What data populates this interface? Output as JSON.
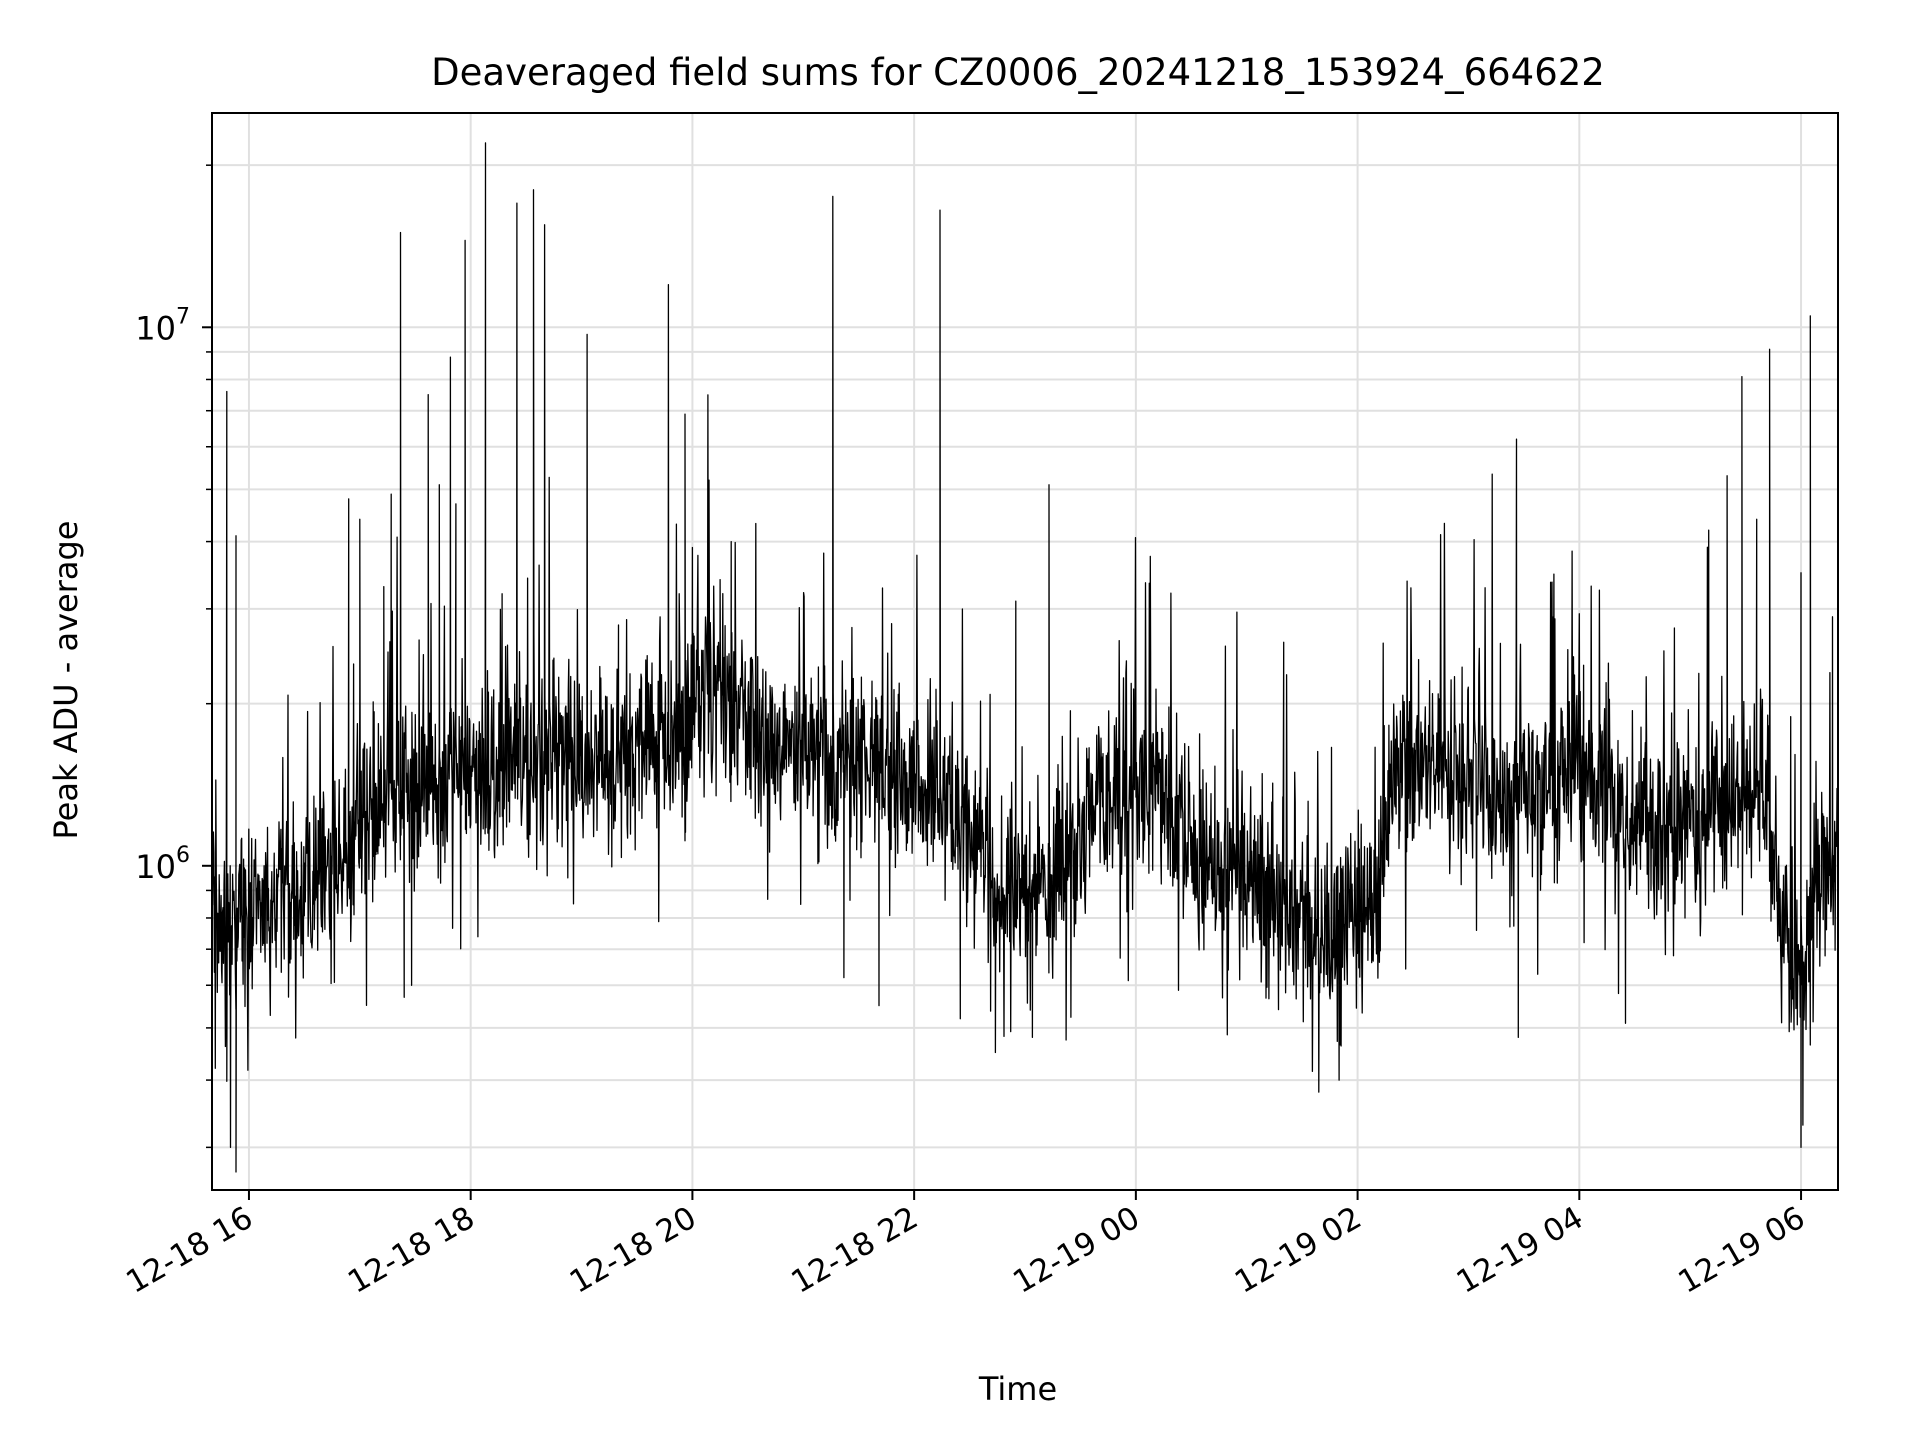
{
  "chart_data": {
    "type": "line",
    "title": "Deaveraged field sums for CZ0006_20241218_153924_664622",
    "xlabel": "Time",
    "ylabel": "Peak ADU - average",
    "y_scale": "log",
    "ylim": [
      250000,
      25000000
    ],
    "xlim": [
      "2024-12-18 15:40",
      "2024-12-19 06:20"
    ],
    "grid": true,
    "line_color": "#000000",
    "grid_color": "#e0e0e0",
    "x_ticks": [
      {
        "at": "2024-12-18 16:00",
        "label": "12-18 16"
      },
      {
        "at": "2024-12-18 18:00",
        "label": "12-18 18"
      },
      {
        "at": "2024-12-18 20:00",
        "label": "12-18 20"
      },
      {
        "at": "2024-12-18 22:00",
        "label": "12-18 22"
      },
      {
        "at": "2024-12-19 00:00",
        "label": "12-19 00"
      },
      {
        "at": "2024-12-19 02:00",
        "label": "12-19 02"
      },
      {
        "at": "2024-12-19 04:00",
        "label": "12-19 04"
      },
      {
        "at": "2024-12-19 06:00",
        "label": "12-19 06"
      }
    ],
    "y_ticks": [
      {
        "value": 1000000,
        "base": "10",
        "exp": "6"
      },
      {
        "value": 10000000,
        "base": "10",
        "exp": "7"
      }
    ],
    "series": [
      {
        "values": [
          [
            "2024-12-18 15:40",
            900000
          ],
          [
            "2024-12-18 15:50",
            780000
          ],
          [
            "2024-12-18 16:00",
            800000
          ],
          [
            "2024-12-18 16:20",
            850000
          ],
          [
            "2024-12-18 16:40",
            950000
          ],
          [
            "2024-12-18 17:00",
            1150000
          ],
          [
            "2024-12-18 17:20",
            1350000
          ],
          [
            "2024-12-18 17:40",
            1450000
          ],
          [
            "2024-12-18 18:00",
            1500000
          ],
          [
            "2024-12-18 18:20",
            1550000
          ],
          [
            "2024-12-18 18:40",
            1550000
          ],
          [
            "2024-12-18 19:00",
            1600000
          ],
          [
            "2024-12-18 19:20",
            1650000
          ],
          [
            "2024-12-18 19:40",
            1750000
          ],
          [
            "2024-12-18 20:00",
            1900000
          ],
          [
            "2024-12-18 20:10",
            2100000
          ],
          [
            "2024-12-18 20:30",
            1800000
          ],
          [
            "2024-12-18 21:00",
            1650000
          ],
          [
            "2024-12-18 21:30",
            1550000
          ],
          [
            "2024-12-18 22:00",
            1400000
          ],
          [
            "2024-12-18 22:20",
            1250000
          ],
          [
            "2024-12-18 22:40",
            950000
          ],
          [
            "2024-12-18 23:00",
            850000
          ],
          [
            "2024-12-18 23:20",
            1050000
          ],
          [
            "2024-12-18 23:40",
            1350000
          ],
          [
            "2024-12-19 00:00",
            1400000
          ],
          [
            "2024-12-19 00:20",
            1250000
          ],
          [
            "2024-12-19 00:40",
            1050000
          ],
          [
            "2024-12-19 01:00",
            950000
          ],
          [
            "2024-12-19 01:20",
            850000
          ],
          [
            "2024-12-19 01:40",
            720000
          ],
          [
            "2024-12-19 02:00",
            800000
          ],
          [
            "2024-12-19 02:10",
            900000
          ],
          [
            "2024-12-19 02:20",
            1500000
          ],
          [
            "2024-12-19 02:40",
            1600000
          ],
          [
            "2024-12-19 03:00",
            1550000
          ],
          [
            "2024-12-19 03:20",
            1350000
          ],
          [
            "2024-12-19 03:40",
            1350000
          ],
          [
            "2024-12-19 04:00",
            1550000
          ],
          [
            "2024-12-19 04:20",
            1300000
          ],
          [
            "2024-12-19 04:40",
            1150000
          ],
          [
            "2024-12-19 05:00",
            1200000
          ],
          [
            "2024-12-19 05:20",
            1250000
          ],
          [
            "2024-12-19 05:40",
            1500000
          ],
          [
            "2024-12-19 05:50",
            800000
          ],
          [
            "2024-12-19 06:00",
            550000
          ],
          [
            "2024-12-19 06:10",
            900000
          ],
          [
            "2024-12-19 06:20",
            1100000
          ]
        ],
        "spikes": [
          [
            "2024-12-18 15:48",
            7600000
          ],
          [
            "2024-12-18 15:53",
            4100000
          ],
          [
            "2024-12-18 16:54",
            4800000
          ],
          [
            "2024-12-18 17:00",
            4400000
          ],
          [
            "2024-12-18 17:13",
            3300000
          ],
          [
            "2024-12-18 17:17",
            4900000
          ],
          [
            "2024-12-18 17:22",
            15000000
          ],
          [
            "2024-12-18 17:37",
            7500000
          ],
          [
            "2024-12-18 17:43",
            5100000
          ],
          [
            "2024-12-18 17:49",
            8800000
          ],
          [
            "2024-12-18 17:52",
            4700000
          ],
          [
            "2024-12-18 17:57",
            14500000
          ],
          [
            "2024-12-18 18:08",
            22000000
          ],
          [
            "2024-12-18 18:17",
            3200000
          ],
          [
            "2024-12-18 18:25",
            17000000
          ],
          [
            "2024-12-18 18:34",
            18000000
          ],
          [
            "2024-12-18 18:40",
            15500000
          ],
          [
            "2024-12-18 19:03",
            9700000
          ],
          [
            "2024-12-18 19:20",
            2800000
          ],
          [
            "2024-12-18 19:47",
            12000000
          ],
          [
            "2024-12-18 19:56",
            6900000
          ],
          [
            "2024-12-18 20:00",
            3900000
          ],
          [
            "2024-12-18 20:09",
            5200000
          ],
          [
            "2024-12-18 20:15",
            3400000
          ],
          [
            "2024-12-18 20:21",
            4000000
          ],
          [
            "2024-12-18 21:16",
            17500000
          ],
          [
            "2024-12-18 22:14",
            16500000
          ],
          [
            "2024-12-18 22:55",
            3100000
          ],
          [
            "2024-12-18 23:13",
            5100000
          ],
          [
            "2024-12-19 00:08",
            2500000
          ],
          [
            "2024-12-19 01:20",
            2600000
          ],
          [
            "2024-12-19 03:26",
            6200000
          ],
          [
            "2024-12-19 03:46",
            2900000
          ],
          [
            "2024-12-19 05:10",
            4200000
          ],
          [
            "2024-12-19 05:20",
            5300000
          ],
          [
            "2024-12-19 05:28",
            8100000
          ],
          [
            "2024-12-19 05:36",
            4400000
          ],
          [
            "2024-12-19 05:43",
            9100000
          ],
          [
            "2024-12-19 06:00",
            3500000
          ],
          [
            "2024-12-19 06:05",
            10500000
          ],
          [
            "2024-12-19 06:17",
            2900000
          ]
        ],
        "dips": [
          [
            "2024-12-18 15:50",
            300000
          ],
          [
            "2024-12-18 15:53",
            270000
          ],
          [
            "2024-12-18 17:24",
            570000
          ],
          [
            "2024-12-18 17:28",
            600000
          ],
          [
            "2024-12-18 21:22",
            620000
          ],
          [
            "2024-12-18 21:41",
            550000
          ],
          [
            "2024-12-18 22:25",
            520000
          ],
          [
            "2024-12-18 22:44",
            450000
          ],
          [
            "2024-12-18 23:04",
            480000
          ],
          [
            "2024-12-19 01:39",
            380000
          ],
          [
            "2024-12-19 01:50",
            400000
          ],
          [
            "2024-12-19 03:27",
            480000
          ],
          [
            "2024-12-19 04:25",
            510000
          ],
          [
            "2024-12-19 06:01",
            330000
          ],
          [
            "2024-12-19 06:00",
            300000
          ]
        ]
      }
    ]
  }
}
